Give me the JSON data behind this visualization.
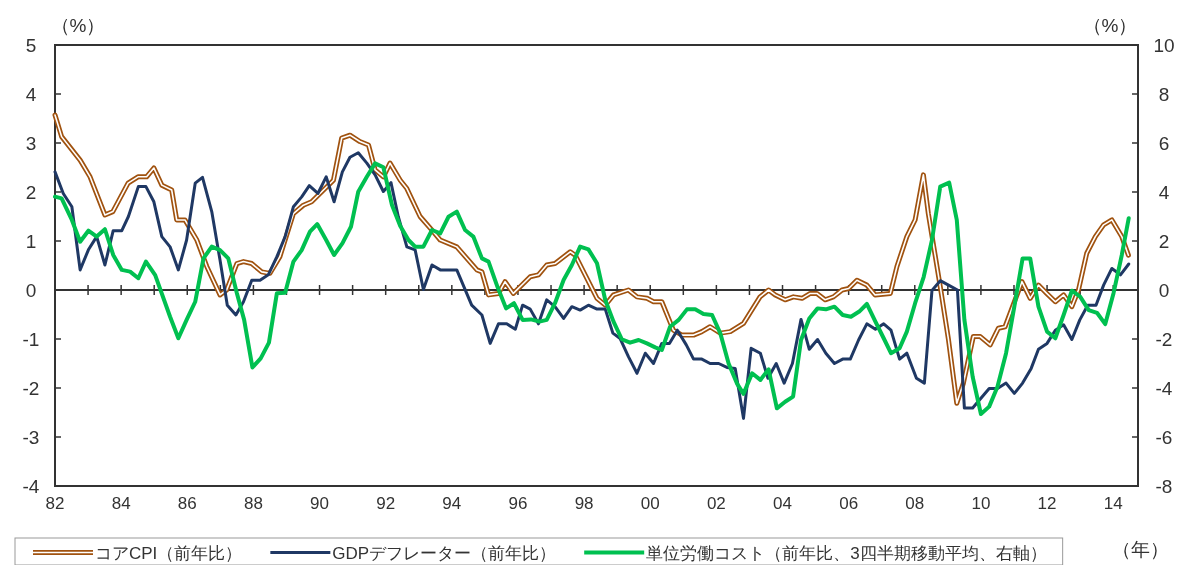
{
  "chart_data": {
    "type": "line",
    "ylabel": "（%）",
    "y2label": "（%）",
    "xlabel": "（年）",
    "legend": "bottom",
    "xlim": [
      1982,
      2014.75
    ],
    "xticks": [
      {
        "value": 1982,
        "label": "82"
      },
      {
        "value": 1983,
        "label": null
      },
      {
        "value": 1984,
        "label": "84"
      },
      {
        "value": 1985,
        "label": null
      },
      {
        "value": 1986,
        "label": "86"
      },
      {
        "value": 1987,
        "label": null
      },
      {
        "value": 1988,
        "label": "88"
      },
      {
        "value": 1989,
        "label": null
      },
      {
        "value": 1990,
        "label": "90"
      },
      {
        "value": 1991,
        "label": null
      },
      {
        "value": 1992,
        "label": "92"
      },
      {
        "value": 1993,
        "label": null
      },
      {
        "value": 1994,
        "label": "94"
      },
      {
        "value": 1995,
        "label": null
      },
      {
        "value": 1996,
        "label": "96"
      },
      {
        "value": 1997,
        "label": null
      },
      {
        "value": 1998,
        "label": "98"
      },
      {
        "value": 1999,
        "label": null
      },
      {
        "value": 2000,
        "label": "00"
      },
      {
        "value": 2001,
        "label": null
      },
      {
        "value": 2002,
        "label": "02"
      },
      {
        "value": 2003,
        "label": null
      },
      {
        "value": 2004,
        "label": "04"
      },
      {
        "value": 2005,
        "label": null
      },
      {
        "value": 2006,
        "label": "06"
      },
      {
        "value": 2007,
        "label": null
      },
      {
        "value": 2008,
        "label": "08"
      },
      {
        "value": 2009,
        "label": null
      },
      {
        "value": 2010,
        "label": "10"
      },
      {
        "value": 2011,
        "label": null
      },
      {
        "value": 2012,
        "label": "12"
      },
      {
        "value": 2013,
        "label": null
      },
      {
        "value": 2014,
        "label": "14"
      }
    ],
    "ylim": [
      -4,
      5
    ],
    "yticks": [
      -4,
      -3,
      -2,
      -1,
      0,
      1,
      2,
      3,
      4,
      5
    ],
    "y2lim": [
      -8,
      10
    ],
    "y2ticks": [
      -8,
      -6,
      -4,
      -2,
      0,
      2,
      4,
      6,
      8,
      10
    ],
    "series": [
      {
        "name": "コアCPI（前年比）",
        "color": "#a0520f",
        "x": [
          1982,
          1982.2,
          1982.76,
          1983.06,
          1983.51,
          1983.75,
          1984.21,
          1984.51,
          1984.77,
          1984.99,
          1985.23,
          1985.53,
          1985.68,
          1985.93,
          1986.29,
          1986.59,
          1986.99,
          1987.19,
          1987.5,
          1987.7,
          1987.95,
          1988.25,
          1988.5,
          1988.8,
          1989.21,
          1989.51,
          1989.76,
          1990.42,
          1990.67,
          1990.92,
          1991.22,
          1991.48,
          1991.68,
          1991.93,
          1992.13,
          1992.44,
          1992.64,
          1993.04,
          1993.4,
          1993.65,
          1994.15,
          1994.76,
          1994.91,
          1995.11,
          1995.41,
          1995.61,
          1995.86,
          1996.37,
          1996.62,
          1996.87,
          1997.12,
          1997.58,
          1997.73,
          1998.39,
          1998.64,
          1998.89,
          1999.34,
          1999.6,
          1999.9,
          2000.1,
          2000.35,
          2000.7,
          2000.96,
          2001.31,
          2001.56,
          2001.81,
          2002.12,
          2002.42,
          2002.82,
          2003.32,
          2003.58,
          2003.78,
          2004.08,
          2004.33,
          2004.59,
          2004.84,
          2005.04,
          2005.29,
          2005.54,
          2005.8,
          2006,
          2006.25,
          2006.55,
          2006.8,
          2007.26,
          2007.46,
          2007.76,
          2008.01,
          2008.26,
          2008.41,
          2008.77,
          2009.02,
          2009.27,
          2009.47,
          2009.77,
          2009.98,
          2010.28,
          2010.53,
          2010.73,
          2011.24,
          2011.49,
          2011.74,
          2011.99,
          2012.25,
          2012.5,
          2012.75,
          2012.95,
          2013.2,
          2013.46,
          2013.71,
          2013.96,
          2014.26,
          2014.46
        ],
        "values": [
          3.57,
          3.13,
          2.65,
          2.31,
          1.53,
          1.6,
          2.18,
          2.31,
          2.31,
          2.49,
          2.14,
          2.04,
          1.43,
          1.43,
          1.02,
          0.48,
          -0.1,
          0,
          0.54,
          0.58,
          0.54,
          0.37,
          0.34,
          0.68,
          1.56,
          1.73,
          1.8,
          2.24,
          3.1,
          3.16,
          3.03,
          2.96,
          2.45,
          2.31,
          2.59,
          2.24,
          2.07,
          1.5,
          1.22,
          1.02,
          0.88,
          0.41,
          0.37,
          -0.1,
          -0.07,
          0.17,
          -0.07,
          0.27,
          0.31,
          0.51,
          0.54,
          0.78,
          0.71,
          -0.17,
          -0.31,
          -0.1,
          0,
          -0.14,
          -0.17,
          -0.24,
          -0.24,
          -0.82,
          -0.92,
          -0.92,
          -0.85,
          -0.75,
          -0.88,
          -0.85,
          -0.68,
          -0.14,
          0,
          -0.1,
          -0.2,
          -0.14,
          -0.17,
          -0.07,
          -0.07,
          -0.2,
          -0.14,
          0,
          0.03,
          0.2,
          0.1,
          -0.1,
          -0.07,
          0.48,
          1.09,
          1.43,
          2.35,
          1.56,
          0.07,
          -1.02,
          -2.31,
          -1.9,
          -0.95,
          -0.95,
          -1.12,
          -0.78,
          -0.75,
          0.17,
          -0.17,
          0.1,
          -0.07,
          -0.24,
          -0.1,
          -0.34,
          0,
          0.75,
          1.09,
          1.33,
          1.43,
          1.09,
          0.71
        ]
      },
      {
        "name": "GDPデフレーター（前年比）",
        "color": "#1f3864",
        "x": [
          1982,
          1982.25,
          1982.51,
          1982.76,
          1983.01,
          1983.26,
          1983.51,
          1983.76,
          1984.02,
          1984.22,
          1984.52,
          1984.75,
          1984.99,
          1985.23,
          1985.48,
          1985.73,
          1985.98,
          1986.24,
          1986.46,
          1986.74,
          1986.99,
          1987.21,
          1987.47,
          1987.7,
          1987.95,
          1988.2,
          1988.45,
          1988.71,
          1988.96,
          1989.21,
          1989.46,
          1989.69,
          1989.95,
          1990.2,
          1990.44,
          1990.69,
          1990.92,
          1991.17,
          1991.43,
          1991.68,
          1991.93,
          1992.16,
          1992.38,
          1992.64,
          1992.89,
          1993.14,
          1993.4,
          1993.65,
          1994.15,
          1994.6,
          1994.91,
          1995.16,
          1995.41,
          1995.66,
          1995.92,
          1996.14,
          1996.37,
          1996.62,
          1996.87,
          1997.12,
          1997.38,
          1997.63,
          1997.88,
          1998.13,
          1998.39,
          1998.64,
          1998.87,
          1999.09,
          1999.34,
          1999.6,
          1999.85,
          2000.1,
          2000.35,
          2000.58,
          2000.82,
          2001.09,
          2001.31,
          2001.56,
          2001.81,
          2002.07,
          2002.32,
          2002.57,
          2002.82,
          2003.05,
          2003.33,
          2003.56,
          2003.81,
          2004.05,
          2004.3,
          2004.56,
          2004.81,
          2005.06,
          2005.31,
          2005.57,
          2005.82,
          2006.05,
          2006.3,
          2006.55,
          2006.81,
          2007.06,
          2007.28,
          2007.54,
          2007.76,
          2008.05,
          2008.29,
          2008.52,
          2008.77,
          2009.02,
          2009.29,
          2009.5,
          2009.75,
          2010,
          2010.25,
          2010.5,
          2010.76,
          2011.01,
          2011.26,
          2011.52,
          2011.74,
          2012,
          2012.25,
          2012.5,
          2012.75,
          2012.99,
          2013.23,
          2013.48,
          2013.71,
          2013.96,
          2014.22,
          2014.47
        ],
        "values": [
          2.41,
          1.97,
          1.7,
          0.41,
          0.82,
          1.09,
          0.51,
          1.21,
          1.21,
          1.5,
          2.11,
          2.11,
          1.8,
          1.09,
          0.88,
          0.41,
          1.02,
          2.18,
          2.3,
          1.6,
          0.61,
          -0.31,
          -0.51,
          -0.24,
          0.2,
          0.2,
          0.31,
          0.68,
          1.09,
          1.7,
          1.9,
          2.13,
          1.97,
          2.31,
          1.8,
          2.41,
          2.71,
          2.8,
          2.59,
          2.35,
          2.01,
          2.19,
          1.5,
          0.88,
          0.82,
          0.01,
          0.51,
          0.41,
          0.41,
          -0.31,
          -0.51,
          -1.09,
          -0.69,
          -0.69,
          -0.8,
          -0.31,
          -0.39,
          -0.69,
          -0.2,
          -0.34,
          -0.58,
          -0.34,
          -0.41,
          -0.31,
          -0.39,
          -0.39,
          -0.88,
          -0.99,
          -1.36,
          -1.7,
          -1.29,
          -1.5,
          -1.09,
          -1.09,
          -0.82,
          -1.12,
          -1.41,
          -1.41,
          -1.5,
          -1.5,
          -1.58,
          -1.6,
          -2.62,
          -1.19,
          -1.29,
          -1.8,
          -1.5,
          -1.9,
          -1.5,
          -0.6,
          -1.21,
          -1.01,
          -1.29,
          -1.5,
          -1.41,
          -1.41,
          -1.02,
          -0.69,
          -0.8,
          -0.69,
          -0.82,
          -1.41,
          -1.29,
          -1.8,
          -1.9,
          -0.01,
          0.19,
          0.1,
          0,
          -2.41,
          -2.41,
          -2.21,
          -2.01,
          -2.01,
          -1.9,
          -2.11,
          -1.9,
          -1.6,
          -1.21,
          -1.09,
          -0.82,
          -0.71,
          -1.01,
          -0.61,
          -0.31,
          -0.31,
          0.1,
          0.44,
          0.31,
          0.53
        ]
      },
      {
        "name": "単位労働コスト（前年比、3四半期移動平均、右軸）",
        "color": "#00c050",
        "axis": "y2",
        "x": [
          1982,
          1982.2,
          1982.51,
          1982.76,
          1983.01,
          1983.26,
          1983.51,
          1983.76,
          1984.02,
          1984.27,
          1984.52,
          1984.75,
          1985.03,
          1985.48,
          1985.73,
          1985.98,
          1986.24,
          1986.49,
          1986.74,
          1986.99,
          1987.24,
          1987.5,
          1987.72,
          1987.97,
          1988.22,
          1988.47,
          1988.71,
          1988.96,
          1989.21,
          1989.46,
          1989.71,
          1989.93,
          1990.2,
          1990.44,
          1990.69,
          1990.95,
          1991.17,
          1991.43,
          1991.68,
          1991.93,
          1992.19,
          1992.44,
          1992.69,
          1992.89,
          1993.14,
          1993.4,
          1993.65,
          1993.9,
          1994.15,
          1994.4,
          1994.65,
          1994.91,
          1995.11,
          1995.38,
          1995.64,
          1995.88,
          1996.14,
          1996.39,
          1996.65,
          1996.87,
          1997.12,
          1997.38,
          1997.63,
          1997.88,
          1998.13,
          1998.39,
          1998.64,
          1998.89,
          1999.14,
          1999.39,
          1999.65,
          1999.9,
          2000.15,
          2000.35,
          2000.6,
          2000.86,
          2001.11,
          2001.36,
          2001.61,
          2001.87,
          2002.12,
          2002.37,
          2002.62,
          2002.82,
          2003.08,
          2003.33,
          2003.58,
          2003.83,
          2004.08,
          2004.32,
          2004.56,
          2004.81,
          2005.06,
          2005.31,
          2005.57,
          2005.82,
          2006.07,
          2006.32,
          2006.55,
          2006.81,
          2007.06,
          2007.28,
          2007.54,
          2007.76,
          2008.01,
          2008.27,
          2008.52,
          2008.77,
          2009.04,
          2009.27,
          2009.5,
          2009.75,
          2010,
          2010.25,
          2010.5,
          2010.76,
          2011.01,
          2011.26,
          2011.49,
          2011.74,
          2012,
          2012.25,
          2012.5,
          2012.75,
          2013,
          2013.26,
          2013.51,
          2013.76,
          2014.01,
          2014.26,
          2014.47
        ],
        "values": [
          3.81,
          3.74,
          2.86,
          1.97,
          2.42,
          2.18,
          2.48,
          1.43,
          0.82,
          0.75,
          0.48,
          1.16,
          0.61,
          -1.09,
          -1.97,
          -1.22,
          -0.48,
          1.29,
          1.77,
          1.63,
          1.29,
          -0.13,
          -1.22,
          -3.16,
          -2.79,
          -2.15,
          -0.13,
          -0.11,
          1.16,
          1.63,
          2.38,
          2.69,
          2.04,
          1.43,
          1.9,
          2.58,
          4.01,
          4.62,
          5.17,
          5.01,
          3.47,
          2.61,
          2.04,
          1.77,
          1.77,
          2.45,
          2.31,
          2.99,
          3.2,
          2.45,
          2.18,
          1.29,
          1.16,
          0.13,
          -0.75,
          -0.54,
          -1.22,
          -1.2,
          -1.29,
          -1.22,
          -0.54,
          0.41,
          1.02,
          1.77,
          1.66,
          1.09,
          -0.41,
          -1.29,
          -2.01,
          -2.15,
          -2.04,
          -2.18,
          -2.34,
          -2.45,
          -1.5,
          -1.22,
          -0.79,
          -0.79,
          -0.98,
          -1.02,
          -1.77,
          -3.0,
          -3.81,
          -4.24,
          -3.4,
          -3.67,
          -3.24,
          -4.83,
          -4.56,
          -4.35,
          -2.04,
          -1.16,
          -0.75,
          -0.79,
          -0.68,
          -1.02,
          -1.09,
          -0.88,
          -0.57,
          -1.29,
          -1.97,
          -2.58,
          -2.38,
          -1.7,
          -0.54,
          0.54,
          2.04,
          4.22,
          4.38,
          2.86,
          -1.22,
          -3.54,
          -5.06,
          -4.76,
          -3.95,
          -2.58,
          -0.68,
          1.29,
          1.29,
          -0.68,
          -1.7,
          -1.97,
          -1.02,
          -0.03,
          -0.27,
          -0.82,
          -0.93,
          -1.39,
          -0.13,
          1.43,
          2.93
        ]
      }
    ]
  }
}
